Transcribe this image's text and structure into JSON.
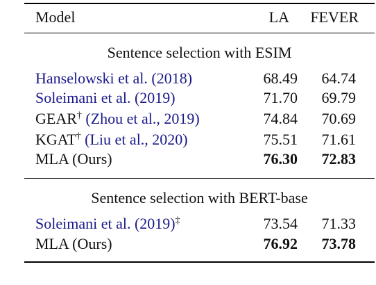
{
  "table": {
    "header": {
      "model": "Model",
      "la": "LA",
      "fever": "FEVER"
    },
    "sections": [
      {
        "title": "Sentence selection with ESIM",
        "rows": [
          {
            "prefix": "",
            "cite": "Hanselowski et al. (2018)",
            "sup": "",
            "la": "68.49",
            "fever": "64.74",
            "bold": false
          },
          {
            "prefix": "",
            "cite": "Soleimani et al. (2019)",
            "sup": "",
            "la": "71.70",
            "fever": "69.79",
            "bold": false
          },
          {
            "prefix": "GEAR",
            "prefix_sup": "†",
            "cite": "(Zhou et al., 2019)",
            "sup": "",
            "la": "74.84",
            "fever": "70.69",
            "bold": false
          },
          {
            "prefix": "KGAT",
            "prefix_sup": "†",
            "cite": "(Liu et al., 2020)",
            "sup": "",
            "la": "75.51",
            "fever": "71.61",
            "bold": false
          },
          {
            "prefix": "MLA (Ours)",
            "cite": "",
            "sup": "",
            "la": "76.30",
            "fever": "72.83",
            "bold": true
          }
        ]
      },
      {
        "title": "Sentence selection with BERT-base",
        "rows": [
          {
            "prefix": "",
            "cite": "Soleimani et al. (2019)",
            "sup": "‡",
            "la": "73.54",
            "fever": "71.33",
            "bold": false
          },
          {
            "prefix": "MLA (Ours)",
            "cite": "",
            "sup": "",
            "la": "76.92",
            "fever": "73.78",
            "bold": true
          }
        ]
      }
    ]
  }
}
